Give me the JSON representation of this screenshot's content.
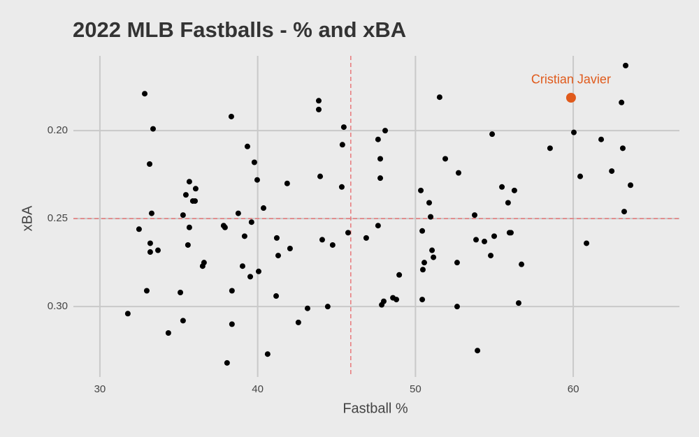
{
  "chart_data": {
    "type": "scatter",
    "title": "2022 MLB Fastballs - % and xBA",
    "x_label": "Fastball %",
    "y_label": "xBA",
    "xlim": [
      28.32,
      66.73
    ],
    "ylim": [
      0.34,
      0.1575
    ],
    "xticks": [
      30,
      40,
      50,
      60
    ],
    "yticks": [
      {
        "value": 0.2,
        "label": "0.20"
      },
      0.25,
      {
        "value": 0.3,
        "label": "0.30"
      }
    ],
    "grid": true,
    "vlines": [
      45.9
    ],
    "hlines": [
      0.25
    ],
    "ref_color": "#e8787a",
    "series": [
      {
        "color": "#000000",
        "x": [
          32.84,
          33.37,
          33.15,
          33.28,
          32.48,
          33.19,
          33.19,
          33.68,
          32.97,
          31.77,
          34.34,
          35.1,
          35.27,
          35.27,
          35.45,
          35.67,
          35.89,
          36.03,
          36.07,
          35.67,
          35.58,
          36.51,
          36.6,
          38.33,
          39.35,
          39.79,
          39.97,
          40.37,
          38.77,
          39.61,
          37.84,
          37.93,
          39.17,
          39.04,
          40.06,
          39.53,
          38.37,
          38.06,
          38.37,
          40.63,
          41.17,
          41.21,
          41.3,
          42.05,
          41.87,
          42.58,
          43.16,
          43.87,
          43.87,
          43.96,
          44.09,
          44.75,
          44.44,
          45.46,
          45.37,
          45.33,
          45.73,
          46.88,
          47.63,
          47.63,
          48.08,
          47.77,
          47.77,
          47.86,
          47.99,
          48.57,
          48.79,
          48.97,
          51.53,
          51.89,
          52.73,
          50.34,
          50.87,
          50.96,
          50.43,
          51.05,
          51.14,
          50.56,
          50.47,
          50.43,
          52.64,
          52.64,
          53.75,
          53.84,
          54.37,
          54.99,
          54.77,
          54.86,
          55.48,
          56.27,
          55.87,
          56.05,
          55.96,
          56.72,
          56.54,
          53.93,
          58.53,
          60.04,
          60.44,
          60.84,
          61.77,
          62.44,
          63.06,
          63.14,
          63.32,
          63.63,
          63.23
        ],
        "values": [
          0.179,
          0.199,
          0.219,
          0.247,
          0.256,
          0.264,
          0.269,
          0.268,
          0.291,
          0.304,
          0.315,
          0.292,
          0.308,
          0.248,
          0.2365,
          0.229,
          0.24,
          0.24,
          0.233,
          0.255,
          0.265,
          0.277,
          0.275,
          0.192,
          0.209,
          0.218,
          0.228,
          0.244,
          0.247,
          0.252,
          0.254,
          0.255,
          0.26,
          0.277,
          0.28,
          0.283,
          0.291,
          0.332,
          0.31,
          0.327,
          0.294,
          0.261,
          0.271,
          0.267,
          0.23,
          0.309,
          0.301,
          0.183,
          0.188,
          0.226,
          0.262,
          0.265,
          0.3,
          0.198,
          0.208,
          0.232,
          0.258,
          0.261,
          0.254,
          0.205,
          0.2,
          0.216,
          0.227,
          0.299,
          0.297,
          0.295,
          0.296,
          0.282,
          0.181,
          0.216,
          0.224,
          0.234,
          0.241,
          0.249,
          0.257,
          0.268,
          0.272,
          0.275,
          0.279,
          0.296,
          0.275,
          0.3,
          0.248,
          0.262,
          0.263,
          0.26,
          0.271,
          0.202,
          0.232,
          0.234,
          0.241,
          0.258,
          0.258,
          0.276,
          0.298,
          0.325,
          0.21,
          0.201,
          0.226,
          0.264,
          0.205,
          0.223,
          0.184,
          0.21,
          0.163,
          0.231,
          0.246
        ]
      },
      {
        "name": "Cristian Javier",
        "color": "#e05a1b",
        "x": [
          59.86
        ],
        "values": [
          0.1813
        ]
      }
    ]
  }
}
